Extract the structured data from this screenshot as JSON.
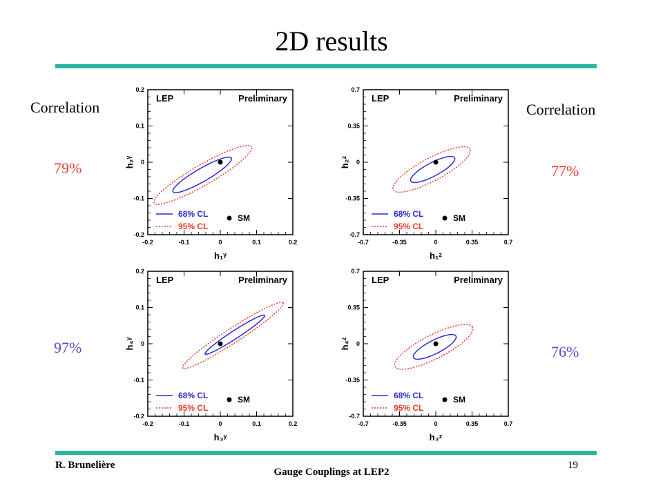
{
  "slide": {
    "title": "2D results",
    "footer_author": "R. Brunelière",
    "footer_title": "Gauge Couplings at LEP2",
    "page_number": "19"
  },
  "correlations": {
    "left_label": "Correlation",
    "right_label": "Correlation",
    "top_left": "79%",
    "top_right": "77%",
    "bottom_left": "97%",
    "bottom_right": "76%",
    "colors": {
      "top_left": "#e8402a",
      "top_right": "#e8402a",
      "bottom_left": "#5050c8",
      "bottom_right": "#5050c8"
    }
  },
  "chart_data": [
    {
      "type": "contour",
      "label_left": "LEP",
      "label_right": "Preliminary",
      "xlabel": "h₁ᵞ",
      "ylabel": "h₂ᵞ",
      "xlim": [
        -0.2,
        0.2
      ],
      "ylim": [
        -0.2,
        0.2
      ],
      "xticks": [
        "-0.2",
        "-0.1",
        "0",
        "0.1",
        "0.2"
      ],
      "yticks": [
        "-0.2",
        "-0.1",
        "0",
        "0.1",
        "0.2"
      ],
      "sm_point": [
        0,
        0
      ],
      "ellipses": [
        {
          "name": "68% CL",
          "color": "#2b2bd6",
          "style": "solid",
          "center": [
            -0.05,
            -0.035
          ],
          "a": 0.093,
          "b": 0.018,
          "angle_deg": 30
        },
        {
          "name": "95% CL",
          "color": "#e83a2a",
          "style": "dotted",
          "center": [
            -0.048,
            -0.035
          ],
          "a": 0.155,
          "b": 0.028,
          "angle_deg": 30
        }
      ],
      "legend": [
        {
          "label": "68% CL",
          "color": "#2b2bd6",
          "style": "solid"
        },
        {
          "label": "95% CL",
          "color": "#e83a2a",
          "style": "dotted"
        },
        {
          "label": "SM",
          "marker": "dot"
        }
      ]
    },
    {
      "type": "contour",
      "label_left": "LEP",
      "label_right": "Preliminary",
      "xlabel": "h₁ᶻ",
      "ylabel": "h₂ᶻ",
      "xlim": [
        -0.7,
        0.7
      ],
      "ylim": [
        -0.7,
        0.7
      ],
      "xticks": [
        "-0.7",
        "-0.35",
        "0",
        "0.35",
        "0.7"
      ],
      "yticks": [
        "-0.7",
        "-0.35",
        "0",
        "0.35",
        "0.7"
      ],
      "sm_point": [
        0,
        0
      ],
      "ellipses": [
        {
          "name": "68% CL",
          "color": "#2b2bd6",
          "style": "solid",
          "center": [
            -0.03,
            -0.07
          ],
          "a": 0.24,
          "b": 0.065,
          "angle_deg": 28
        },
        {
          "name": "95% CL",
          "color": "#e83a2a",
          "style": "dotted",
          "center": [
            -0.04,
            -0.07
          ],
          "a": 0.42,
          "b": 0.11,
          "angle_deg": 28
        }
      ],
      "legend": [
        {
          "label": "68% CL",
          "color": "#2b2bd6",
          "style": "solid"
        },
        {
          "label": "95% CL",
          "color": "#e83a2a",
          "style": "dotted"
        },
        {
          "label": "SM",
          "marker": "dot"
        }
      ]
    },
    {
      "type": "contour",
      "label_left": "LEP",
      "label_right": "Preliminary",
      "xlabel": "h₃ᵞ",
      "ylabel": "h₄ᵞ",
      "xlim": [
        -0.2,
        0.2
      ],
      "ylim": [
        -0.2,
        0.2
      ],
      "xticks": [
        "-0.2",
        "-0.1",
        "0",
        "0.1",
        "0.2"
      ],
      "yticks": [
        "-0.2",
        "-0.1",
        "0",
        "0.1",
        "0.2"
      ],
      "sm_point": [
        0,
        0
      ],
      "ellipses": [
        {
          "name": "68% CL",
          "color": "#2b2bd6",
          "style": "solid",
          "center": [
            0.04,
            0.025
          ],
          "a": 0.098,
          "b": 0.011,
          "angle_deg": 33
        },
        {
          "name": "95% CL",
          "color": "#e83a2a",
          "style": "dotted",
          "center": [
            0.035,
            0.023
          ],
          "a": 0.165,
          "b": 0.02,
          "angle_deg": 33
        }
      ],
      "legend": [
        {
          "label": "68% CL",
          "color": "#2b2bd6",
          "style": "solid"
        },
        {
          "label": "95% CL",
          "color": "#e83a2a",
          "style": "dotted"
        },
        {
          "label": "SM",
          "marker": "dot"
        }
      ]
    },
    {
      "type": "contour",
      "label_left": "LEP",
      "label_right": "Preliminary",
      "xlabel": "h₃ᶻ",
      "ylabel": "h₄ᶻ",
      "xlim": [
        -0.7,
        0.7
      ],
      "ylim": [
        -0.7,
        0.7
      ],
      "xticks": [
        "-0.7",
        "-0.35",
        "0",
        "0.35",
        "0.7"
      ],
      "yticks": [
        "-0.7",
        "-0.35",
        "0",
        "0.35",
        "0.7"
      ],
      "sm_point": [
        0,
        0
      ],
      "ellipses": [
        {
          "name": "68% CL",
          "color": "#2b2bd6",
          "style": "solid",
          "center": [
            -0.01,
            -0.03
          ],
          "a": 0.23,
          "b": 0.065,
          "angle_deg": 27
        },
        {
          "name": "95% CL",
          "color": "#e83a2a",
          "style": "dotted",
          "center": [
            -0.02,
            -0.03
          ],
          "a": 0.42,
          "b": 0.115,
          "angle_deg": 27
        }
      ],
      "legend": [
        {
          "label": "68% CL",
          "color": "#2b2bd6",
          "style": "solid"
        },
        {
          "label": "95% CL",
          "color": "#e83a2a",
          "style": "dotted"
        },
        {
          "label": "SM",
          "marker": "dot"
        }
      ]
    }
  ]
}
